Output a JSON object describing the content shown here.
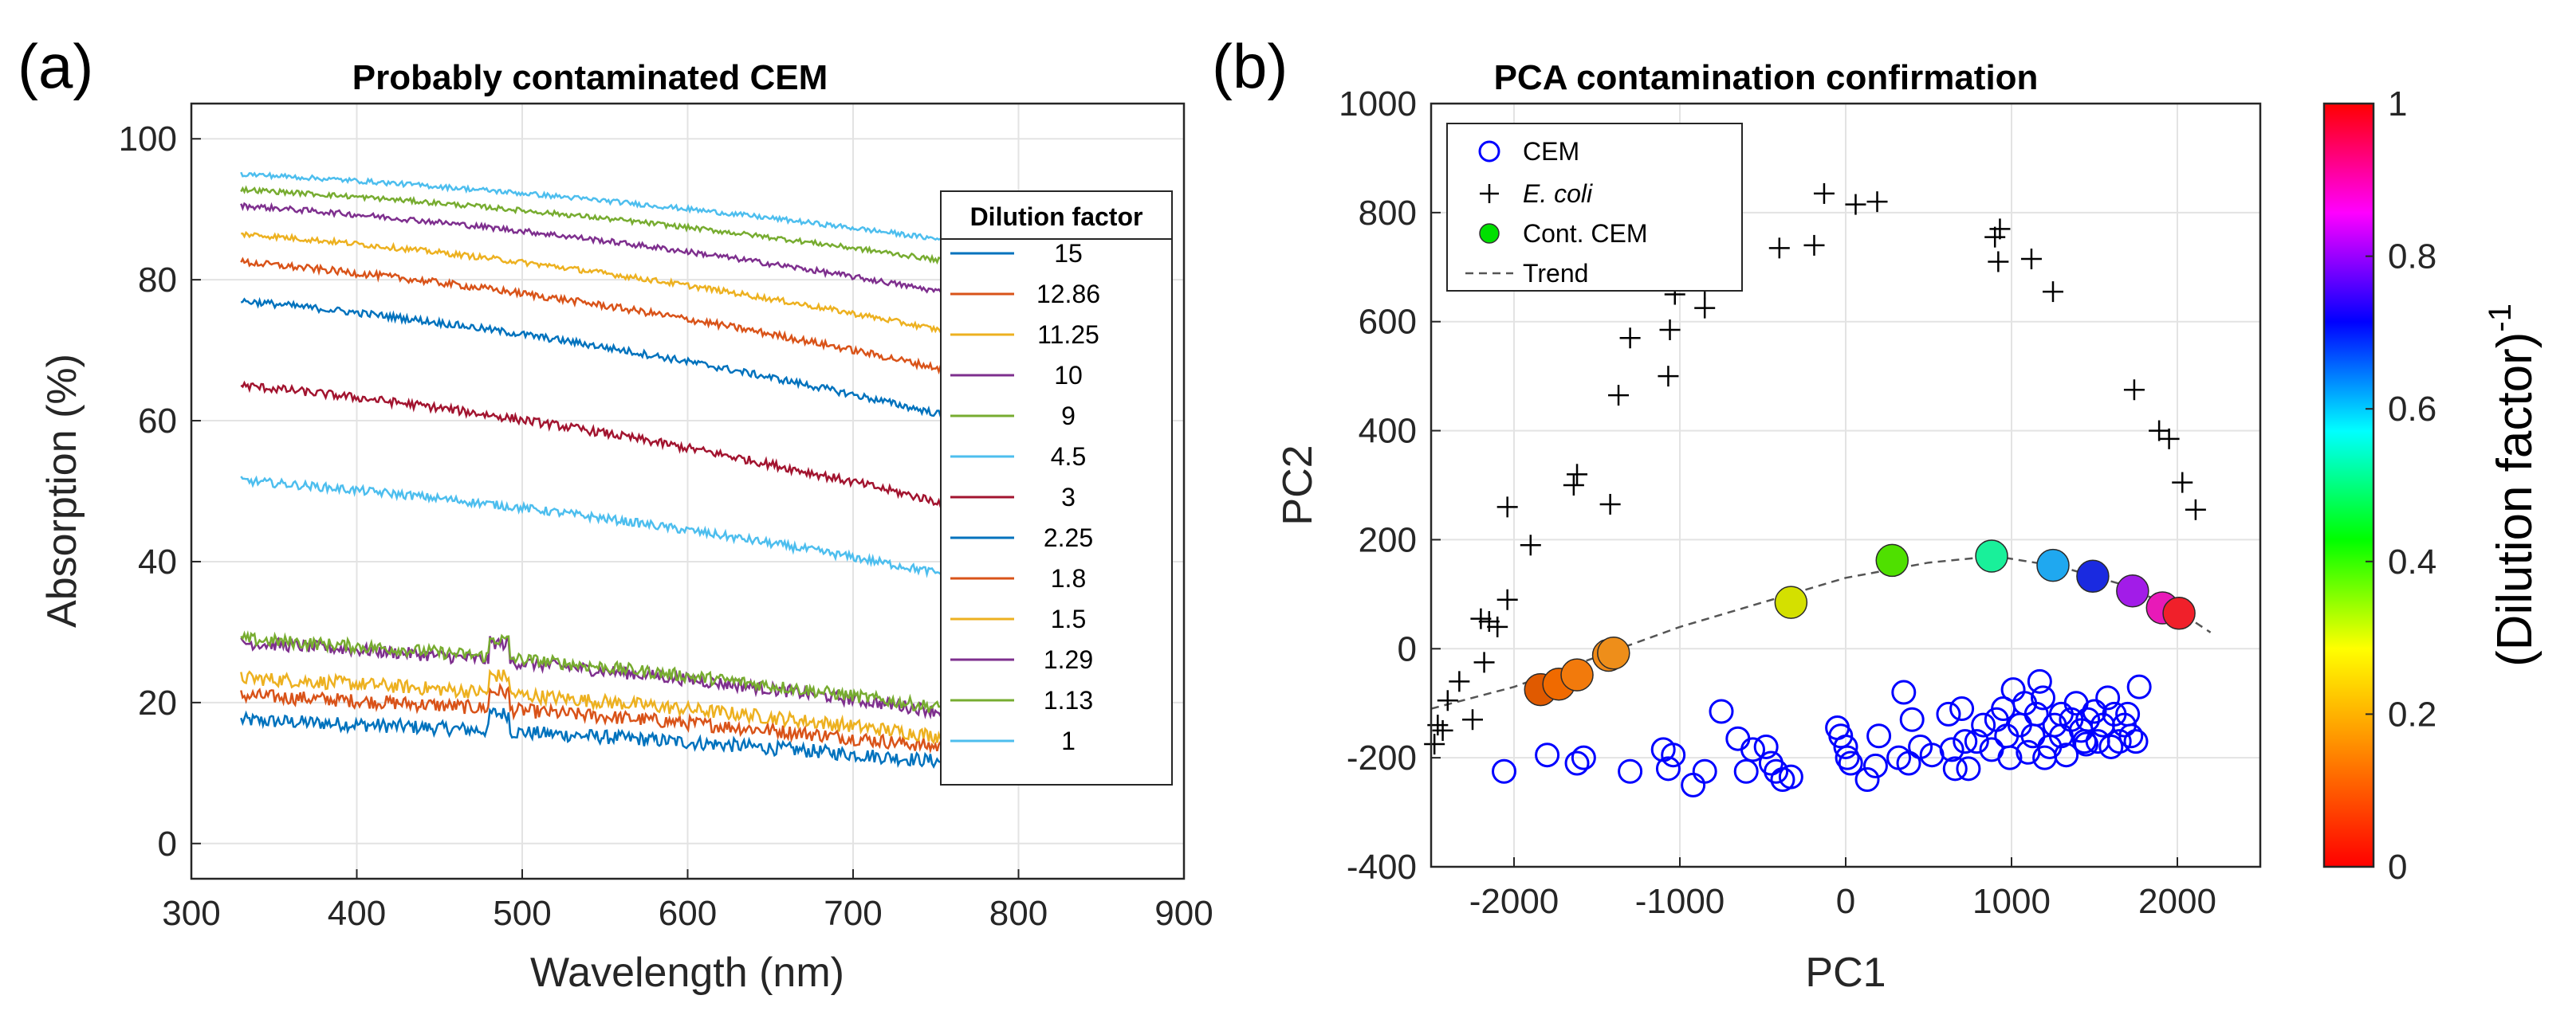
{
  "chart_data": [
    {
      "type": "line",
      "panel_label": "(a)",
      "title": "Probably contaminated CEM",
      "xlabel": "Wavelength (nm)",
      "ylabel": "Absorption (%)",
      "xlim": [
        300,
        900
      ],
      "ylim": [
        -5,
        105
      ],
      "xticks": [
        "300",
        "400",
        "500",
        "600",
        "700",
        "800",
        "900"
      ],
      "yticks": [
        "0",
        "20",
        "40",
        "60",
        "80",
        "100"
      ],
      "grid": true,
      "legend_title": "Dilution factor",
      "legend_position": "right",
      "x_range": [
        330,
        760
      ],
      "series": [
        {
          "name": "15",
          "color": "#0072BD",
          "start": 17.5,
          "end": 11.5,
          "noise": 2.0
        },
        {
          "name": "12.86",
          "color": "#D95319",
          "start": 21.0,
          "end": 13.5,
          "noise": 2.0
        },
        {
          "name": "11.25",
          "color": "#EDB120",
          "start": 23.5,
          "end": 15.0,
          "noise": 2.0
        },
        {
          "name": "10",
          "color": "#7E2F8E",
          "start": 28.5,
          "end": 18.5,
          "noise": 1.8
        },
        {
          "name": "9",
          "color": "#77AC30",
          "start": 29.0,
          "end": 19.0,
          "noise": 1.8
        },
        {
          "name": "4.5",
          "color": "#4DBEEE",
          "start": 51.5,
          "end": 38.0,
          "noise": 1.2
        },
        {
          "name": "3",
          "color": "#A2142F",
          "start": 65.0,
          "end": 48.0,
          "noise": 1.2
        },
        {
          "name": "2.25",
          "color": "#0072BD",
          "start": 77.0,
          "end": 60.5,
          "noise": 1.0
        },
        {
          "name": "1.8",
          "color": "#D95319",
          "start": 82.5,
          "end": 67.0,
          "noise": 1.0
        },
        {
          "name": "1.5",
          "color": "#EDB120",
          "start": 86.5,
          "end": 72.5,
          "noise": 0.8
        },
        {
          "name": "1.29",
          "color": "#7E2F8E",
          "start": 90.5,
          "end": 78.0,
          "noise": 0.8
        },
        {
          "name": "1.13",
          "color": "#77AC30",
          "start": 92.8,
          "end": 82.5,
          "noise": 0.7
        },
        {
          "name": "1",
          "color": "#4DBEEE",
          "start": 95.0,
          "end": 85.5,
          "noise": 0.7
        }
      ]
    },
    {
      "type": "scatter",
      "panel_label": "(b)",
      "title": "PCA contamination confirmation",
      "xlabel": "PC1",
      "ylabel": "PC2",
      "xlim": [
        -2500,
        2500
      ],
      "ylim": [
        -400,
        1000
      ],
      "xticks": [
        "-2000",
        "-1000",
        "0",
        "1000",
        "2000"
      ],
      "yticks": [
        "-400",
        "-200",
        "0",
        "200",
        "400",
        "600",
        "800",
        "1000"
      ],
      "grid": true,
      "legend_position": "top-left",
      "legend": [
        {
          "label": "CEM",
          "marker": "open-circle",
          "color": "#0000FF"
        },
        {
          "label": "E. coli",
          "marker": "plus",
          "color": "#000000",
          "italic": true
        },
        {
          "label": "Cont. CEM",
          "marker": "filled-circle",
          "color": "#00E000"
        },
        {
          "label": "Trend",
          "marker": "dashed-line",
          "color": "#555555"
        }
      ],
      "colorbar": {
        "label": "(Dilution factor)",
        "label_superscript": "-1",
        "range": [
          0,
          1
        ],
        "ticks": [
          "0",
          "0.2",
          "0.4",
          "0.6",
          "0.8",
          "1"
        ],
        "colors": [
          "#FF0000",
          "#FF8000",
          "#FFFF00",
          "#00FF00",
          "#00FFFF",
          "#0000FF",
          "#FF00FF",
          "#FF0000"
        ]
      },
      "cem_points": [
        [
          -2060,
          -225
        ],
        [
          -1800,
          -195
        ],
        [
          -1620,
          -210
        ],
        [
          -1580,
          -200
        ],
        [
          -1300,
          -225
        ],
        [
          -1100,
          -185
        ],
        [
          -1070,
          -220
        ],
        [
          -1040,
          -195
        ],
        [
          -920,
          -250
        ],
        [
          -850,
          -225
        ],
        [
          -750,
          -115
        ],
        [
          -650,
          -165
        ],
        [
          -600,
          -225
        ],
        [
          -560,
          -185
        ],
        [
          -480,
          -180
        ],
        [
          -450,
          -210
        ],
        [
          -420,
          -225
        ],
        [
          -380,
          -240
        ],
        [
          -330,
          -235
        ],
        [
          -50,
          -145
        ],
        [
          -30,
          -160
        ],
        [
          0,
          -180
        ],
        [
          10,
          -200
        ],
        [
          30,
          -210
        ],
        [
          130,
          -240
        ],
        [
          180,
          -215
        ],
        [
          200,
          -160
        ],
        [
          320,
          -200
        ],
        [
          350,
          -80
        ],
        [
          380,
          -210
        ],
        [
          400,
          -130
        ],
        [
          450,
          -180
        ],
        [
          520,
          -195
        ],
        [
          620,
          -120
        ],
        [
          640,
          -185
        ],
        [
          660,
          -220
        ],
        [
          700,
          -110
        ],
        [
          720,
          -170
        ],
        [
          740,
          -220
        ],
        [
          790,
          -170
        ],
        [
          830,
          -140
        ],
        [
          880,
          -185
        ],
        [
          910,
          -130
        ],
        [
          950,
          -110
        ],
        [
          970,
          -160
        ],
        [
          990,
          -200
        ],
        [
          1010,
          -75
        ],
        [
          1050,
          -140
        ],
        [
          1080,
          -100
        ],
        [
          1100,
          -190
        ],
        [
          1130,
          -160
        ],
        [
          1150,
          -120
        ],
        [
          1170,
          -60
        ],
        [
          1190,
          -90
        ],
        [
          1200,
          -200
        ],
        [
          1230,
          -180
        ],
        [
          1260,
          -140
        ],
        [
          1300,
          -160
        ],
        [
          1330,
          -195
        ],
        [
          1360,
          -130
        ],
        [
          1390,
          -100
        ],
        [
          1420,
          -150
        ],
        [
          1440,
          -170
        ],
        [
          1460,
          -130
        ],
        [
          1500,
          -115
        ],
        [
          1520,
          -170
        ],
        [
          1550,
          -140
        ],
        [
          1580,
          -90
        ],
        [
          1600,
          -180
        ],
        [
          1620,
          -120
        ],
        [
          1650,
          -170
        ],
        [
          1680,
          -140
        ],
        [
          1700,
          -120
        ],
        [
          1720,
          -160
        ],
        [
          1750,
          -170
        ],
        [
          1770,
          -70
        ],
        [
          1450,
          -175
        ],
        [
          1300,
          -120
        ]
      ],
      "ecoli_points": [
        [
          -2480,
          -175
        ],
        [
          -2460,
          -140
        ],
        [
          -2430,
          -150
        ],
        [
          -2400,
          -95
        ],
        [
          -2330,
          -60
        ],
        [
          -2250,
          -130
        ],
        [
          -2200,
          55
        ],
        [
          -2180,
          -25
        ],
        [
          -2150,
          50
        ],
        [
          -2100,
          40
        ],
        [
          -2040,
          90
        ],
        [
          -2040,
          260
        ],
        [
          -1900,
          190
        ],
        [
          -1640,
          300
        ],
        [
          -1620,
          320
        ],
        [
          -1420,
          265
        ],
        [
          -1370,
          465
        ],
        [
          -1300,
          570
        ],
        [
          -1070,
          500
        ],
        [
          -1060,
          585
        ],
        [
          -1030,
          650
        ],
        [
          -850,
          625
        ],
        [
          -850,
          660
        ],
        [
          -400,
          735
        ],
        [
          -190,
          740
        ],
        [
          -130,
          835
        ],
        [
          60,
          815
        ],
        [
          190,
          820
        ],
        [
          900,
          755
        ],
        [
          930,
          770
        ],
        [
          920,
          710
        ],
        [
          1120,
          715
        ],
        [
          1250,
          655
        ],
        [
          1740,
          475
        ],
        [
          1890,
          400
        ],
        [
          1950,
          385
        ],
        [
          2030,
          305
        ],
        [
          2110,
          255
        ]
      ],
      "cont_points": [
        {
          "x": -1840,
          "y": -75,
          "color": "#E05A00"
        },
        {
          "x": -1730,
          "y": -65,
          "color": "#F06A00"
        },
        {
          "x": -1620,
          "y": -48,
          "color": "#F27A0C"
        },
        {
          "x": -1430,
          "y": -12,
          "color": "#F08A18"
        },
        {
          "x": -1400,
          "y": -8,
          "color": "#EE8E1A"
        },
        {
          "x": -330,
          "y": 85,
          "color": "#D4E000"
        },
        {
          "x": 280,
          "y": 162,
          "color": "#4FE000"
        },
        {
          "x": 880,
          "y": 170,
          "color": "#19F09A"
        },
        {
          "x": 1250,
          "y": 153,
          "color": "#1FA8F0"
        },
        {
          "x": 1490,
          "y": 133,
          "color": "#1A2AE0"
        },
        {
          "x": 1730,
          "y": 106,
          "color": "#A21CE8"
        },
        {
          "x": 1910,
          "y": 75,
          "color": "#E81AB8"
        },
        {
          "x": 2010,
          "y": 65,
          "color": "#F0202A"
        }
      ],
      "trend": [
        [
          -2500,
          -110
        ],
        [
          -2000,
          -70
        ],
        [
          -1500,
          -15
        ],
        [
          -1000,
          40
        ],
        [
          -500,
          85
        ],
        [
          0,
          130
        ],
        [
          500,
          158
        ],
        [
          900,
          170
        ],
        [
          1300,
          150
        ],
        [
          1700,
          115
        ],
        [
          2000,
          70
        ],
        [
          2200,
          30
        ]
      ]
    }
  ]
}
